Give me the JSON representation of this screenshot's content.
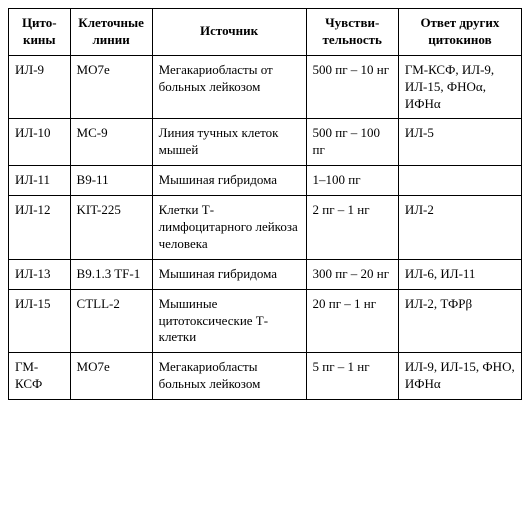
{
  "table": {
    "headers": {
      "col1": "Цито-\nкины",
      "col2": "Клеточные линии",
      "col3": "Источник",
      "col4": "Чувстви-\nтельность",
      "col5": "Ответ других цитокинов"
    },
    "rows": [
      {
        "cytokine": "ИЛ-9",
        "cell_line": "MO7e",
        "source": "Мегакариобласты от больных лейкозом",
        "sensitivity": "500 пг – 10 нг",
        "response": "ГМ-КСФ, ИЛ-9, ИЛ-15, ФНОα, ИФНα"
      },
      {
        "cytokine": "ИЛ-10",
        "cell_line": "MC-9",
        "source": "Линия тучных клеток мышей",
        "sensitivity": "500 пг – 100 пг",
        "response": "ИЛ-5"
      },
      {
        "cytokine": "ИЛ-11",
        "cell_line": "B9-11",
        "source": "Мышиная гибридома",
        "sensitivity": "1–100 пг",
        "response": ""
      },
      {
        "cytokine": "ИЛ-12",
        "cell_line": "KIT-225",
        "source": "Клетки Т-лимфоцитарного лейкоза человека",
        "sensitivity": "2 пг – 1 нг",
        "response": "ИЛ-2"
      },
      {
        "cytokine": "ИЛ-13",
        "cell_line": "B9.1.3 TF-1",
        "source": "Мышиная гибридома",
        "sensitivity": "300 пг – 20 нг",
        "response": "ИЛ-6, ИЛ-11"
      },
      {
        "cytokine": "ИЛ-15",
        "cell_line": "CTLL-2",
        "source": "Мышиные цитотоксические Т-клетки",
        "sensitivity": "20 пг – 1 нг",
        "response": "ИЛ-2, ТФРβ"
      },
      {
        "cytokine": "ГМ-КСФ",
        "cell_line": "MO7e",
        "source": "Мегакариобласты больных лейкозом",
        "sensitivity": "5 пг – 1 нг",
        "response": "ИЛ-9, ИЛ-15, ФНО, ИФНα"
      }
    ]
  }
}
